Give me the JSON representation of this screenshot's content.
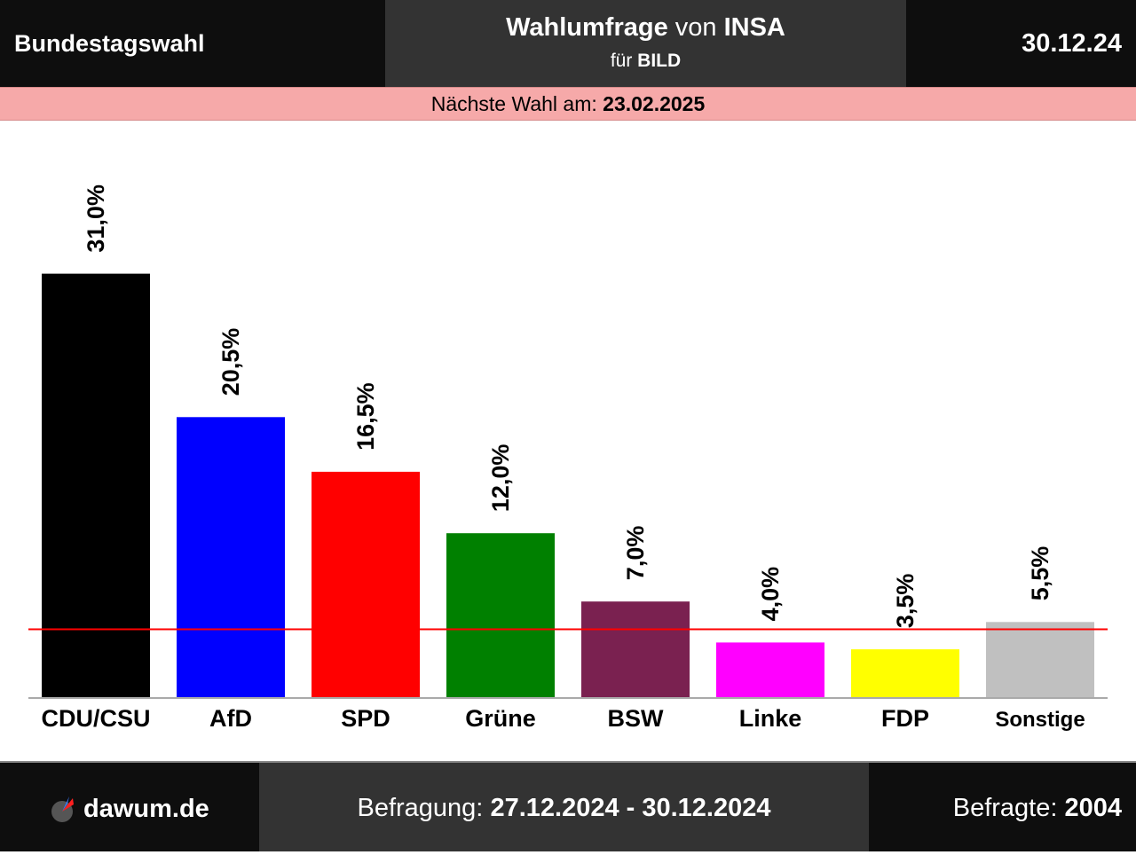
{
  "header": {
    "left_title": "Bundestagswahl",
    "center_line1_bold": "Wahlumfrage",
    "center_line1_mid": "von",
    "center_line1_inst": "INSA",
    "center_line2_pre": "für",
    "center_line2_client": "BILD",
    "date": "30.12.24"
  },
  "election": {
    "label": "Nächste Wahl am:",
    "date": "23.02.2025"
  },
  "chart_data": {
    "type": "bar",
    "categories": [
      "CDU/CSU",
      "AfD",
      "SPD",
      "Grüne",
      "BSW",
      "Linke",
      "FDP",
      "Sonstige"
    ],
    "values": [
      31.0,
      20.5,
      16.5,
      12.0,
      7.0,
      4.0,
      3.5,
      5.5
    ],
    "value_labels": [
      "31,0%",
      "20,5%",
      "16,5%",
      "12,0%",
      "7,0%",
      "4,0%",
      "3,5%",
      "5,5%"
    ],
    "colors": [
      "#000000",
      "#0000ff",
      "#ff0000",
      "#008000",
      "#7a2150",
      "#ff00ff",
      "#ffff00",
      "#c0c0c0"
    ],
    "threshold": 5.0,
    "threshold_color": "#ff0000",
    "ylim": [
      0,
      40
    ]
  },
  "footer": {
    "site": "dawum.de",
    "survey_label": "Befragung:",
    "survey_period": "27.12.2024 - 30.12.2024",
    "respondents_label": "Befragte:",
    "respondents": "2004"
  }
}
